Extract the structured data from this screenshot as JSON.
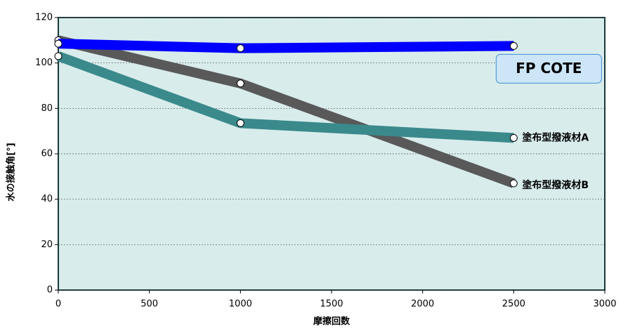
{
  "chart_data": {
    "type": "line",
    "x_label": "摩擦回数",
    "y_label": "水の接触角[°]",
    "x": [
      0,
      1000,
      2500
    ],
    "series": [
      {
        "name": "FP COTE",
        "color": "#0000ff",
        "label_color": "#000000",
        "values": [
          108.5,
          106.5,
          107.5
        ]
      },
      {
        "name": "塗布型撥液材A",
        "color": "#3a8a8c",
        "label_color": "#ff0000",
        "values": [
          103,
          73.5,
          67
        ]
      },
      {
        "name": "塗布型撥液材B",
        "color": "#595959",
        "label_color": "#ee55ee",
        "values": [
          110,
          91,
          47
        ]
      }
    ],
    "xlim": [
      0,
      3000
    ],
    "xticks": [
      0,
      500,
      1000,
      1500,
      2000,
      2500,
      3000
    ],
    "ylim": [
      0,
      120
    ],
    "yticks": [
      0,
      20,
      40,
      60,
      80,
      100,
      120
    ],
    "grid": true,
    "plot_background": "#d9ecec"
  }
}
